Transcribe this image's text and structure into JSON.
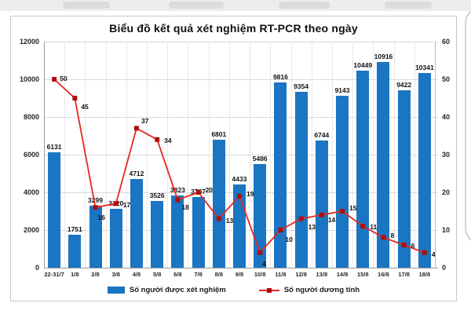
{
  "chart_data": {
    "type": "bar+line combo",
    "title": "Biểu đồ kết quả xét nghiệm RT-PCR theo ngày",
    "categories": [
      "22-31/7",
      "1/8",
      "2/8",
      "3/8",
      "4/8",
      "5/8",
      "6/8",
      "7/8",
      "8/8",
      "9/8",
      "10/8",
      "11/8",
      "12/8",
      "13/8",
      "14/8",
      "15/8",
      "16/8",
      "17/8",
      "18/8"
    ],
    "series": [
      {
        "name": "Số người được xét nghiệm",
        "type": "bar",
        "axis": "left",
        "color": "#1a75c2",
        "values": [
          6131,
          1751,
          3299,
          3120,
          4712,
          3526,
          3823,
          3767,
          6801,
          4433,
          5486,
          9816,
          9354,
          6744,
          9143,
          10449,
          10916,
          9422,
          10341
        ]
      },
      {
        "name": "Số người dương tính",
        "type": "line",
        "axis": "right",
        "color": "#e8271b",
        "marker_color": "#b00e0e",
        "values": [
          50,
          45,
          16,
          17,
          37,
          34,
          18,
          20,
          13,
          19,
          4,
          10,
          13,
          14,
          15,
          11,
          8,
          6,
          4
        ],
        "label_offsets": [
          [
            7,
            -1
          ],
          [
            8,
            11
          ],
          [
            3,
            13
          ],
          [
            9,
            2
          ],
          [
            6,
            -9
          ],
          [
            9,
            1
          ],
          [
            5,
            9
          ],
          [
            9,
            -3
          ],
          [
            9,
            2
          ],
          [
            9,
            -3
          ],
          [
            3,
            14
          ],
          [
            6,
            12
          ],
          [
            9,
            10
          ],
          [
            8,
            6
          ],
          [
            9,
            -4
          ],
          [
            9,
            1
          ],
          [
            9,
            -3
          ],
          [
            9,
            1
          ],
          [
            9,
            2
          ]
        ]
      }
    ],
    "left_axis": {
      "min": 0,
      "max": 12000,
      "step": 2000,
      "ticks": [
        "12000",
        "10000",
        "8000",
        "6000",
        "4000",
        "2000",
        "0"
      ]
    },
    "right_axis": {
      "min": 0,
      "max": 60,
      "step": 10,
      "ticks": [
        "60",
        "50",
        "40",
        "30",
        "20",
        "10",
        "0"
      ]
    },
    "grid": true,
    "legend_position": "bottom",
    "data_labels": true
  },
  "colors": {
    "grid_horizontal": "#d9d9d9",
    "grid_vertical": "#e8e8e8",
    "axis_line": "#9b9b9b",
    "plot_right_border": "#bfbfbf",
    "chart_border": "#c9c9c9",
    "page_strip": "#ededed",
    "panel_border": "#d2d2d2"
  }
}
